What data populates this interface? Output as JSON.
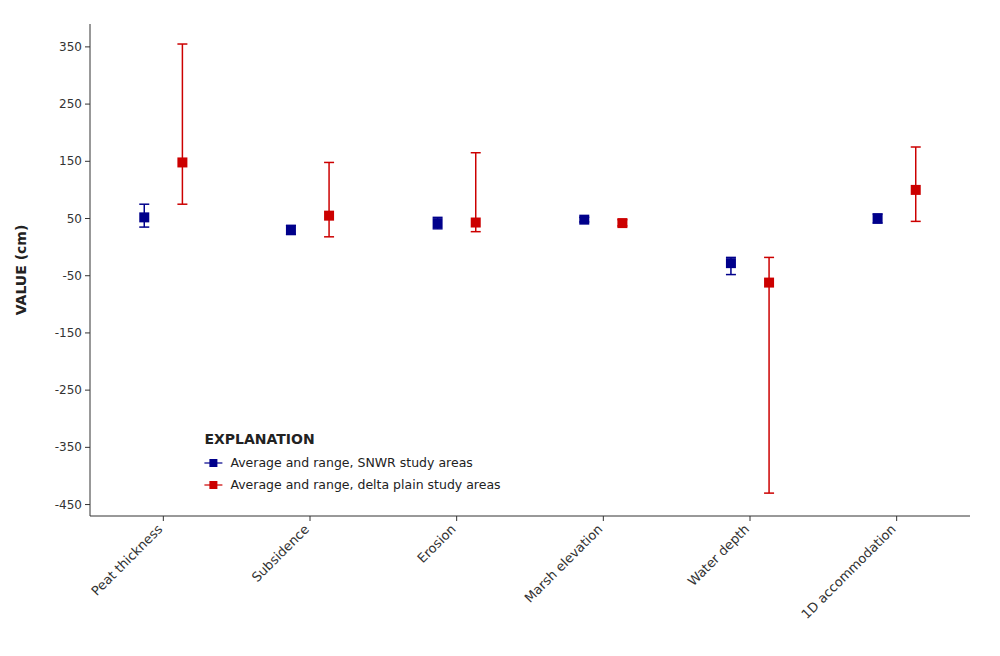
{
  "chart_data": {
    "type": "errorbar",
    "categories": [
      "Peat thickness",
      "Subsidence",
      "Erosion",
      "Marsh elevation",
      "Water depth",
      "1D accommodation"
    ],
    "series": [
      {
        "name": "Average and range, SNWR study areas",
        "color": "#00008B",
        "marker": "square",
        "values": [
          52,
          30,
          42,
          48,
          -28,
          50
        ],
        "upper": [
          75,
          38,
          52,
          52,
          -18,
          58
        ],
        "lower": [
          35,
          22,
          32,
          44,
          -48,
          42
        ]
      },
      {
        "name": "Average and range, delta plain study areas",
        "color": "#CC0000",
        "marker": "square",
        "values": [
          148,
          55,
          43,
          42,
          -62,
          100
        ],
        "upper": [
          355,
          148,
          165,
          48,
          -18,
          175
        ],
        "lower": [
          75,
          18,
          27,
          37,
          -430,
          45
        ]
      }
    ],
    "ylabel": "VALUE (cm)",
    "ylim": [
      -470,
      390
    ],
    "yticks": [
      350,
      250,
      150,
      50,
      -50,
      -150,
      -250,
      -350,
      -450
    ],
    "legend_title": "EXPLANATION",
    "legend": "lower left",
    "grid": false
  }
}
